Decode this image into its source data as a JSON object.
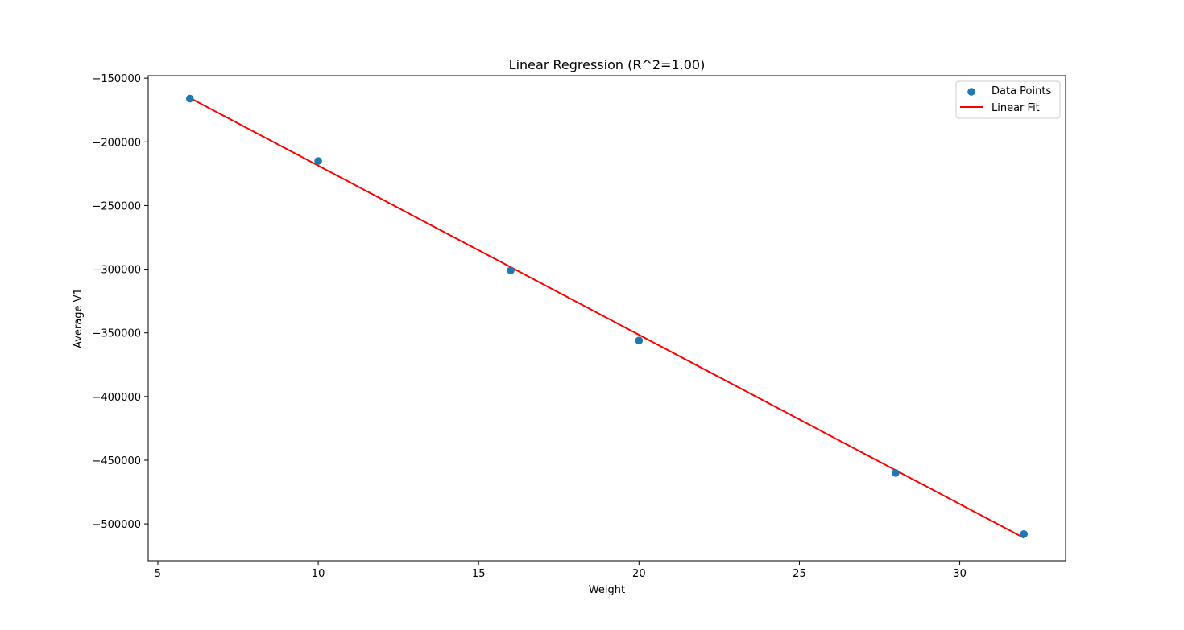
{
  "chart_data": {
    "type": "scatter",
    "title": "Linear Regression (R^2=1.00)",
    "xlabel": "Weight",
    "ylabel": "Average V1",
    "xlim": [
      4.7,
      33.3
    ],
    "ylim": [
      -529000,
      -148000
    ],
    "xticks": [
      5,
      10,
      15,
      20,
      25,
      30
    ],
    "yticks": [
      -150000,
      -200000,
      -250000,
      -300000,
      -350000,
      -400000,
      -450000,
      -500000
    ],
    "ytick_labels": [
      "−150000",
      "−200000",
      "−250000",
      "−300000",
      "−350000",
      "−400000",
      "−450000",
      "−500000"
    ],
    "grid": false,
    "legend_position": "top-right",
    "series": [
      {
        "name": "Data Points",
        "kind": "scatter",
        "color": "#1f77b4",
        "x": [
          6,
          10,
          16,
          20,
          28,
          32
        ],
        "y": [
          -166000,
          -215000,
          -301000,
          -356000,
          -460000,
          -508000
        ]
      },
      {
        "name": "Linear Fit",
        "kind": "line",
        "color": "#ff0000",
        "x": [
          6,
          32
        ],
        "y": [
          -165500,
          -511000
        ]
      }
    ]
  }
}
